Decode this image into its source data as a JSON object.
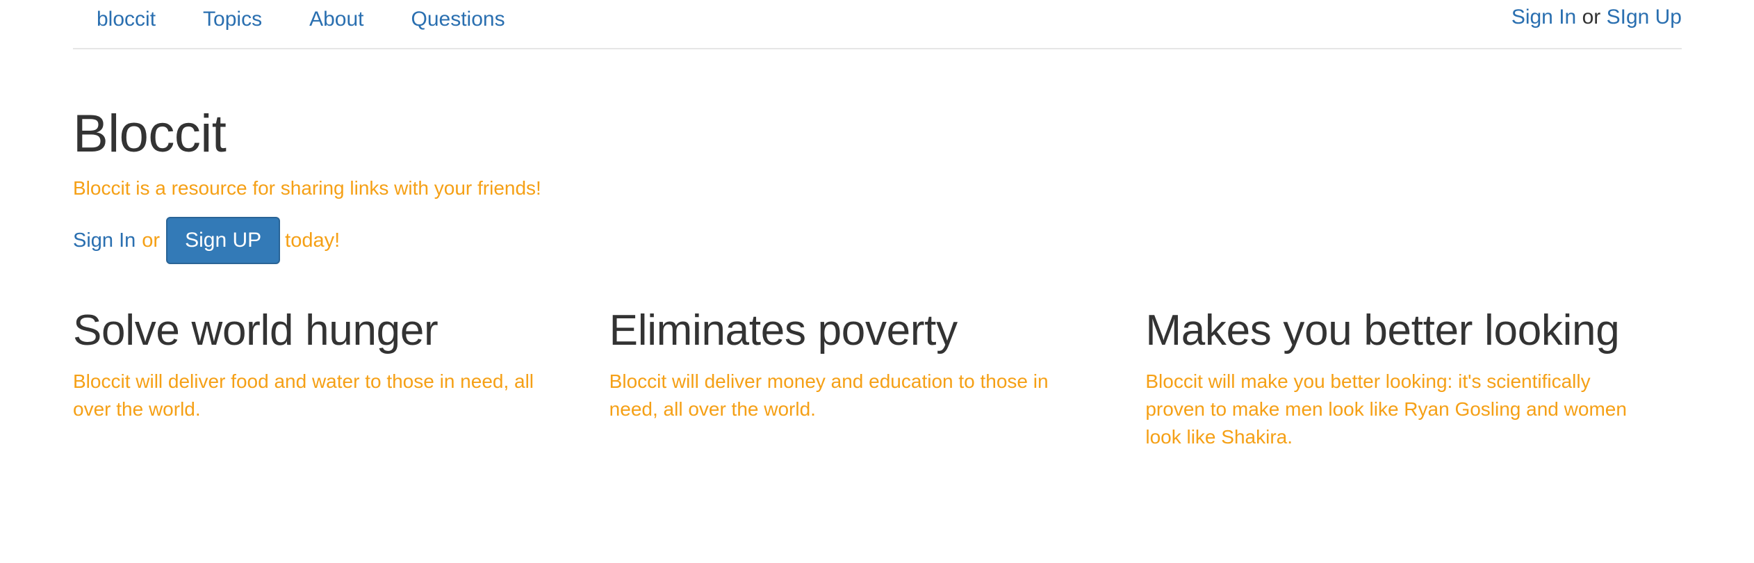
{
  "nav": {
    "brand": "bloccit",
    "items": [
      {
        "label": "Topics"
      },
      {
        "label": "About"
      },
      {
        "label": "Questions"
      }
    ],
    "auth": {
      "sign_in": "Sign In",
      "or": "or",
      "sign_up": "SIgn Up"
    }
  },
  "hero": {
    "title": "Bloccit",
    "tagline": "Bloccit is a resource for sharing links with your friends!",
    "sign_in_link": "Sign In",
    "or_text": "or",
    "sign_up_button": "Sign UP",
    "today_text": "today!"
  },
  "features": [
    {
      "title": "Solve world hunger",
      "text": "Bloccit will deliver food and water to those in need, all over the world."
    },
    {
      "title": "Eliminates poverty",
      "text": "Bloccit will deliver money and education to those in need, all over the world."
    },
    {
      "title": "Makes you better looking",
      "text": "Bloccit will make you better looking: it's scientifically proven to make men look like Ryan Gosling and women look like Shakira."
    }
  ],
  "colors": {
    "link": "#2a6fb0",
    "accent_orange": "#f5a016",
    "heading": "#333333",
    "button_bg": "#337ab7"
  }
}
